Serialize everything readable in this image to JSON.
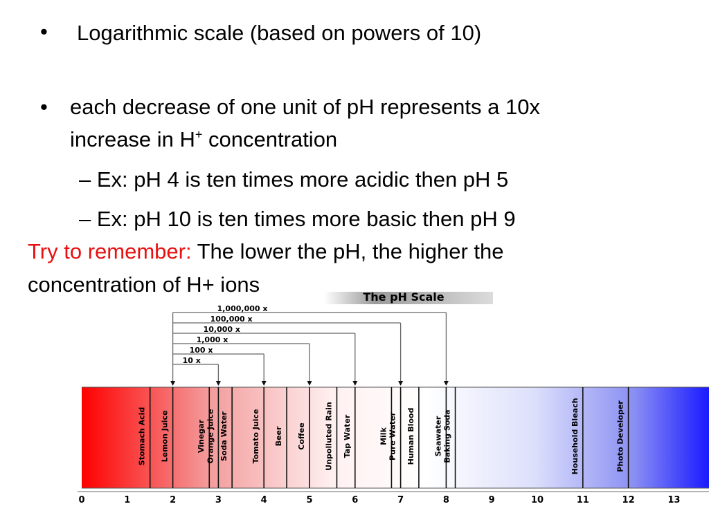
{
  "slide": {
    "bullet_1": "Logarithmic scale (based on powers of 10)",
    "bullet_2_line1": "each decrease of one unit of pH represents a 10x",
    "bullet_2_line2_pre": "increase in H",
    "bullet_2_line2_sup": "+",
    "bullet_2_line2_post": " concentration",
    "sub_1": "– Ex: pH 4 is ten times more acidic then pH 5",
    "sub_2": "– Ex: pH 10 is ten times more basic then pH 9",
    "remember_label": "Try to remember:",
    "remember_text": " The lower the pH, the higher the",
    "remember_line2": "concentration of H+ ions"
  },
  "colors": {
    "accent_red": "#e81010",
    "scale_red": "#ff0000",
    "scale_blue": "#1a1aff"
  },
  "diagram": {
    "title": "The pH Scale",
    "multipliers": [
      "1,000,000 x",
      "100,000 x",
      "10,000 x",
      "1,000 x",
      "100 x",
      "10 x"
    ],
    "ticks": [
      "0",
      "1",
      "2",
      "3",
      "4",
      "5",
      "6",
      "7",
      "8",
      "9",
      "10",
      "11",
      "12",
      "13"
    ],
    "substances": [
      {
        "label": "Stomach Acid",
        "ph": 1.5
      },
      {
        "label": "Lemon Juice",
        "ph": 2.0
      },
      {
        "label": "Vinegar",
        "ph": 2.8
      },
      {
        "label": "Orange Juice",
        "ph": 3.0
      },
      {
        "label": "Soda Water",
        "ph": 3.3
      },
      {
        "label": "Tomato Juice",
        "ph": 4.0
      },
      {
        "label": "Beer",
        "ph": 4.5
      },
      {
        "label": "Coffee",
        "ph": 5.0
      },
      {
        "label": "Unpolluted Rain",
        "ph": 5.6
      },
      {
        "label": "Tap Water",
        "ph": 6.0
      },
      {
        "label": "Milk",
        "ph": 6.8
      },
      {
        "label": "Pure Water",
        "ph": 7.0
      },
      {
        "label": "Human Blood",
        "ph": 7.4
      },
      {
        "label": "Seawater",
        "ph": 8.0
      },
      {
        "label": "Baking Soda",
        "ph": 8.2
      },
      {
        "label": "Household Bleach",
        "ph": 11.0
      },
      {
        "label": "Photo Developer",
        "ph": 12.0
      }
    ]
  }
}
